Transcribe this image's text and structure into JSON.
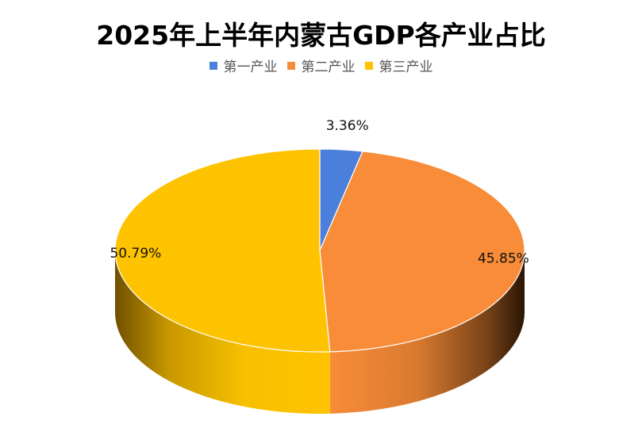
{
  "chart_data": {
    "type": "pie",
    "title": "2025年上半年内蒙古GDP各产业占比",
    "legend_position": "top",
    "three_d": true,
    "slices": [
      {
        "name": "第一产业",
        "value": 3.36,
        "label": "3.36%",
        "color": "#4A7FDB"
      },
      {
        "name": "第二产业",
        "value": 45.85,
        "label": "45.85%",
        "color": "#F88C38"
      },
      {
        "name": "第三产业",
        "value": 50.79,
        "label": "50.79%",
        "color": "#FEC300"
      }
    ]
  }
}
